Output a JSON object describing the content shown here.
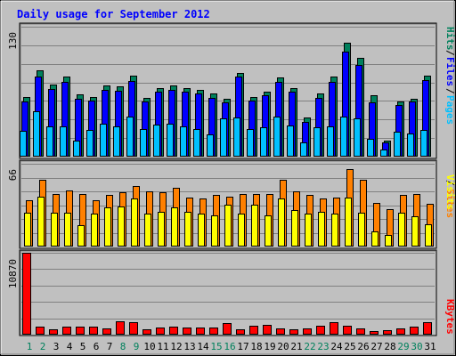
{
  "chart_data": [
    {
      "type": "bar",
      "title": "Daily usage for September 2012",
      "ylabel_parts": [
        "Pages",
        "/",
        "Files",
        "/",
        "Hits"
      ],
      "y_max_label": "130",
      "ylim": [
        0,
        130
      ],
      "categories": [
        "1",
        "2",
        "3",
        "4",
        "5",
        "6",
        "7",
        "8",
        "9",
        "10",
        "11",
        "12",
        "13",
        "14",
        "15",
        "16",
        "17",
        "18",
        "19",
        "20",
        "21",
        "22",
        "23",
        "24",
        "25",
        "26",
        "27",
        "28",
        "29",
        "30",
        "31"
      ],
      "weekend_days": [
        "1",
        "2",
        "8",
        "9",
        "15",
        "16",
        "22",
        "23",
        "29",
        "30"
      ],
      "series": [
        {
          "name": "Hits",
          "values": [
            60,
            86,
            72,
            80,
            62,
            60,
            71,
            70,
            81,
            59,
            69,
            71,
            69,
            67,
            63,
            58,
            84,
            60,
            65,
            79,
            69,
            39,
            63,
            80,
            114,
            99,
            61,
            16,
            55,
            58,
            81
          ]
        },
        {
          "name": "Files",
          "values": [
            55,
            80,
            68,
            75,
            58,
            56,
            67,
            66,
            76,
            55,
            65,
            67,
            65,
            63,
            59,
            54,
            80,
            56,
            61,
            75,
            65,
            35,
            59,
            75,
            105,
            92,
            54,
            14,
            52,
            55,
            77
          ]
        },
        {
          "name": "Pages",
          "values": [
            26,
            45,
            30,
            30,
            16,
            27,
            33,
            30,
            40,
            28,
            32,
            33,
            30,
            28,
            22,
            38,
            39,
            28,
            29,
            40,
            31,
            14,
            29,
            30,
            40,
            38,
            18,
            7,
            25,
            23,
            27
          ]
        }
      ],
      "colors": {
        "Hits": "#00805c",
        "Files": "#0000ff",
        "Pages": "#00c0ff"
      }
    },
    {
      "type": "bar",
      "ylabel_parts": [
        "Sites",
        "/",
        "Visits"
      ],
      "y_max_label": "66",
      "ylim": [
        0,
        66
      ],
      "categories": [
        "1",
        "2",
        "3",
        "4",
        "5",
        "6",
        "7",
        "8",
        "9",
        "10",
        "11",
        "12",
        "13",
        "14",
        "15",
        "16",
        "17",
        "18",
        "19",
        "20",
        "21",
        "22",
        "23",
        "24",
        "25",
        "26",
        "27",
        "28",
        "29",
        "30",
        "31"
      ],
      "series": [
        {
          "name": "Visits",
          "values": [
            37,
            53,
            42,
            45,
            42,
            37,
            41,
            43,
            48,
            44,
            43,
            47,
            39,
            38,
            41,
            40,
            42,
            42,
            42,
            53,
            44,
            41,
            38,
            39,
            62,
            53,
            35,
            30,
            41,
            42,
            34
          ]
        },
        {
          "name": "Sites",
          "values": [
            27,
            40,
            27,
            27,
            17,
            26,
            31,
            32,
            38,
            26,
            28,
            31,
            28,
            26,
            25,
            33,
            26,
            33,
            25,
            38,
            29,
            26,
            28,
            26,
            39,
            27,
            12,
            9,
            27,
            24,
            18
          ]
        }
      ],
      "colors": {
        "Visits": "#ff8000",
        "Sites": "#ffff00"
      }
    },
    {
      "type": "bar",
      "ylabel_parts": [
        "KBytes"
      ],
      "y_max_label": "10870",
      "ylim": [
        0,
        10870
      ],
      "categories": [
        "1",
        "2",
        "3",
        "4",
        "5",
        "6",
        "7",
        "8",
        "9",
        "10",
        "11",
        "12",
        "13",
        "14",
        "15",
        "16",
        "17",
        "18",
        "19",
        "20",
        "21",
        "22",
        "23",
        "24",
        "25",
        "26",
        "27",
        "28",
        "29",
        "30",
        "31"
      ],
      "series": [
        {
          "name": "KBytes",
          "values": [
            10870,
            1070,
            740,
            1070,
            1010,
            1010,
            850,
            1780,
            1650,
            680,
            940,
            1070,
            990,
            940,
            900,
            1480,
            740,
            1180,
            1280,
            880,
            740,
            830,
            1200,
            1630,
            1180,
            880,
            470,
            570,
            880,
            1040,
            1640
          ]
        }
      ],
      "colors": {
        "KBytes": "#ff0000"
      }
    }
  ]
}
